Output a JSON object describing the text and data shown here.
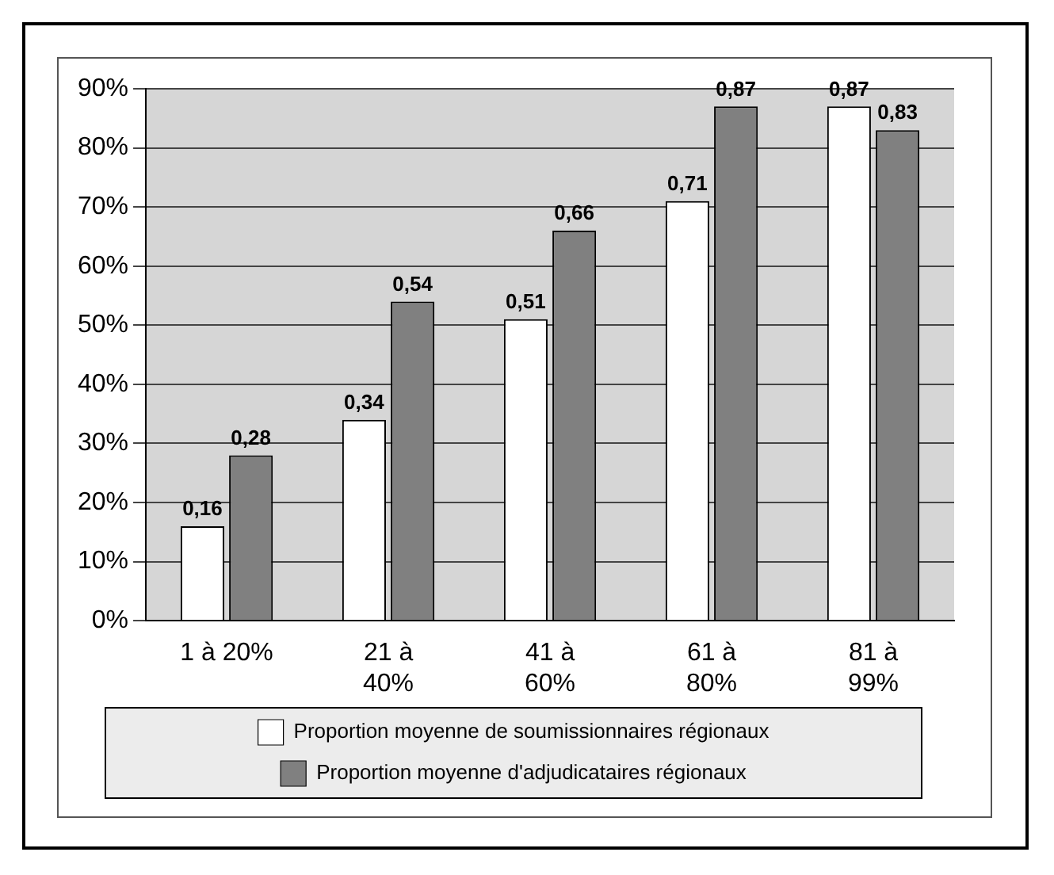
{
  "chart_data": {
    "type": "bar",
    "categories": [
      "1 à 20%",
      "21 à 40%",
      "41 à 60%",
      "61 à 80%",
      "81 à 99%"
    ],
    "series": [
      {
        "name": "Proportion moyenne de soumissionnaires régionaux",
        "color": "#ffffff",
        "values": [
          0.16,
          0.34,
          0.51,
          0.71,
          0.87
        ],
        "value_labels": [
          "0,16",
          "0,34",
          "0,51",
          "0,71",
          "0,87"
        ]
      },
      {
        "name": "Proportion moyenne d'adjudicataires régionaux",
        "color": "#808080",
        "values": [
          0.28,
          0.54,
          0.66,
          0.87,
          0.83
        ],
        "value_labels": [
          "0,28",
          "0,54",
          "0,66",
          "0,87",
          "0,83"
        ]
      }
    ],
    "ylim": [
      0,
      0.9
    ],
    "yticks": [
      {
        "value": 0,
        "label": "0%"
      },
      {
        "value": 0.1,
        "label": "10%"
      },
      {
        "value": 0.2,
        "label": "20%"
      },
      {
        "value": 0.3,
        "label": "30%"
      },
      {
        "value": 0.4,
        "label": "40%"
      },
      {
        "value": 0.5,
        "label": "50%"
      },
      {
        "value": 0.6,
        "label": "60%"
      },
      {
        "value": 0.7,
        "label": "70%"
      },
      {
        "value": 0.8,
        "label": "80%"
      },
      {
        "value": 0.9,
        "label": "90%"
      }
    ],
    "grid": "y",
    "legend": "bottom"
  }
}
